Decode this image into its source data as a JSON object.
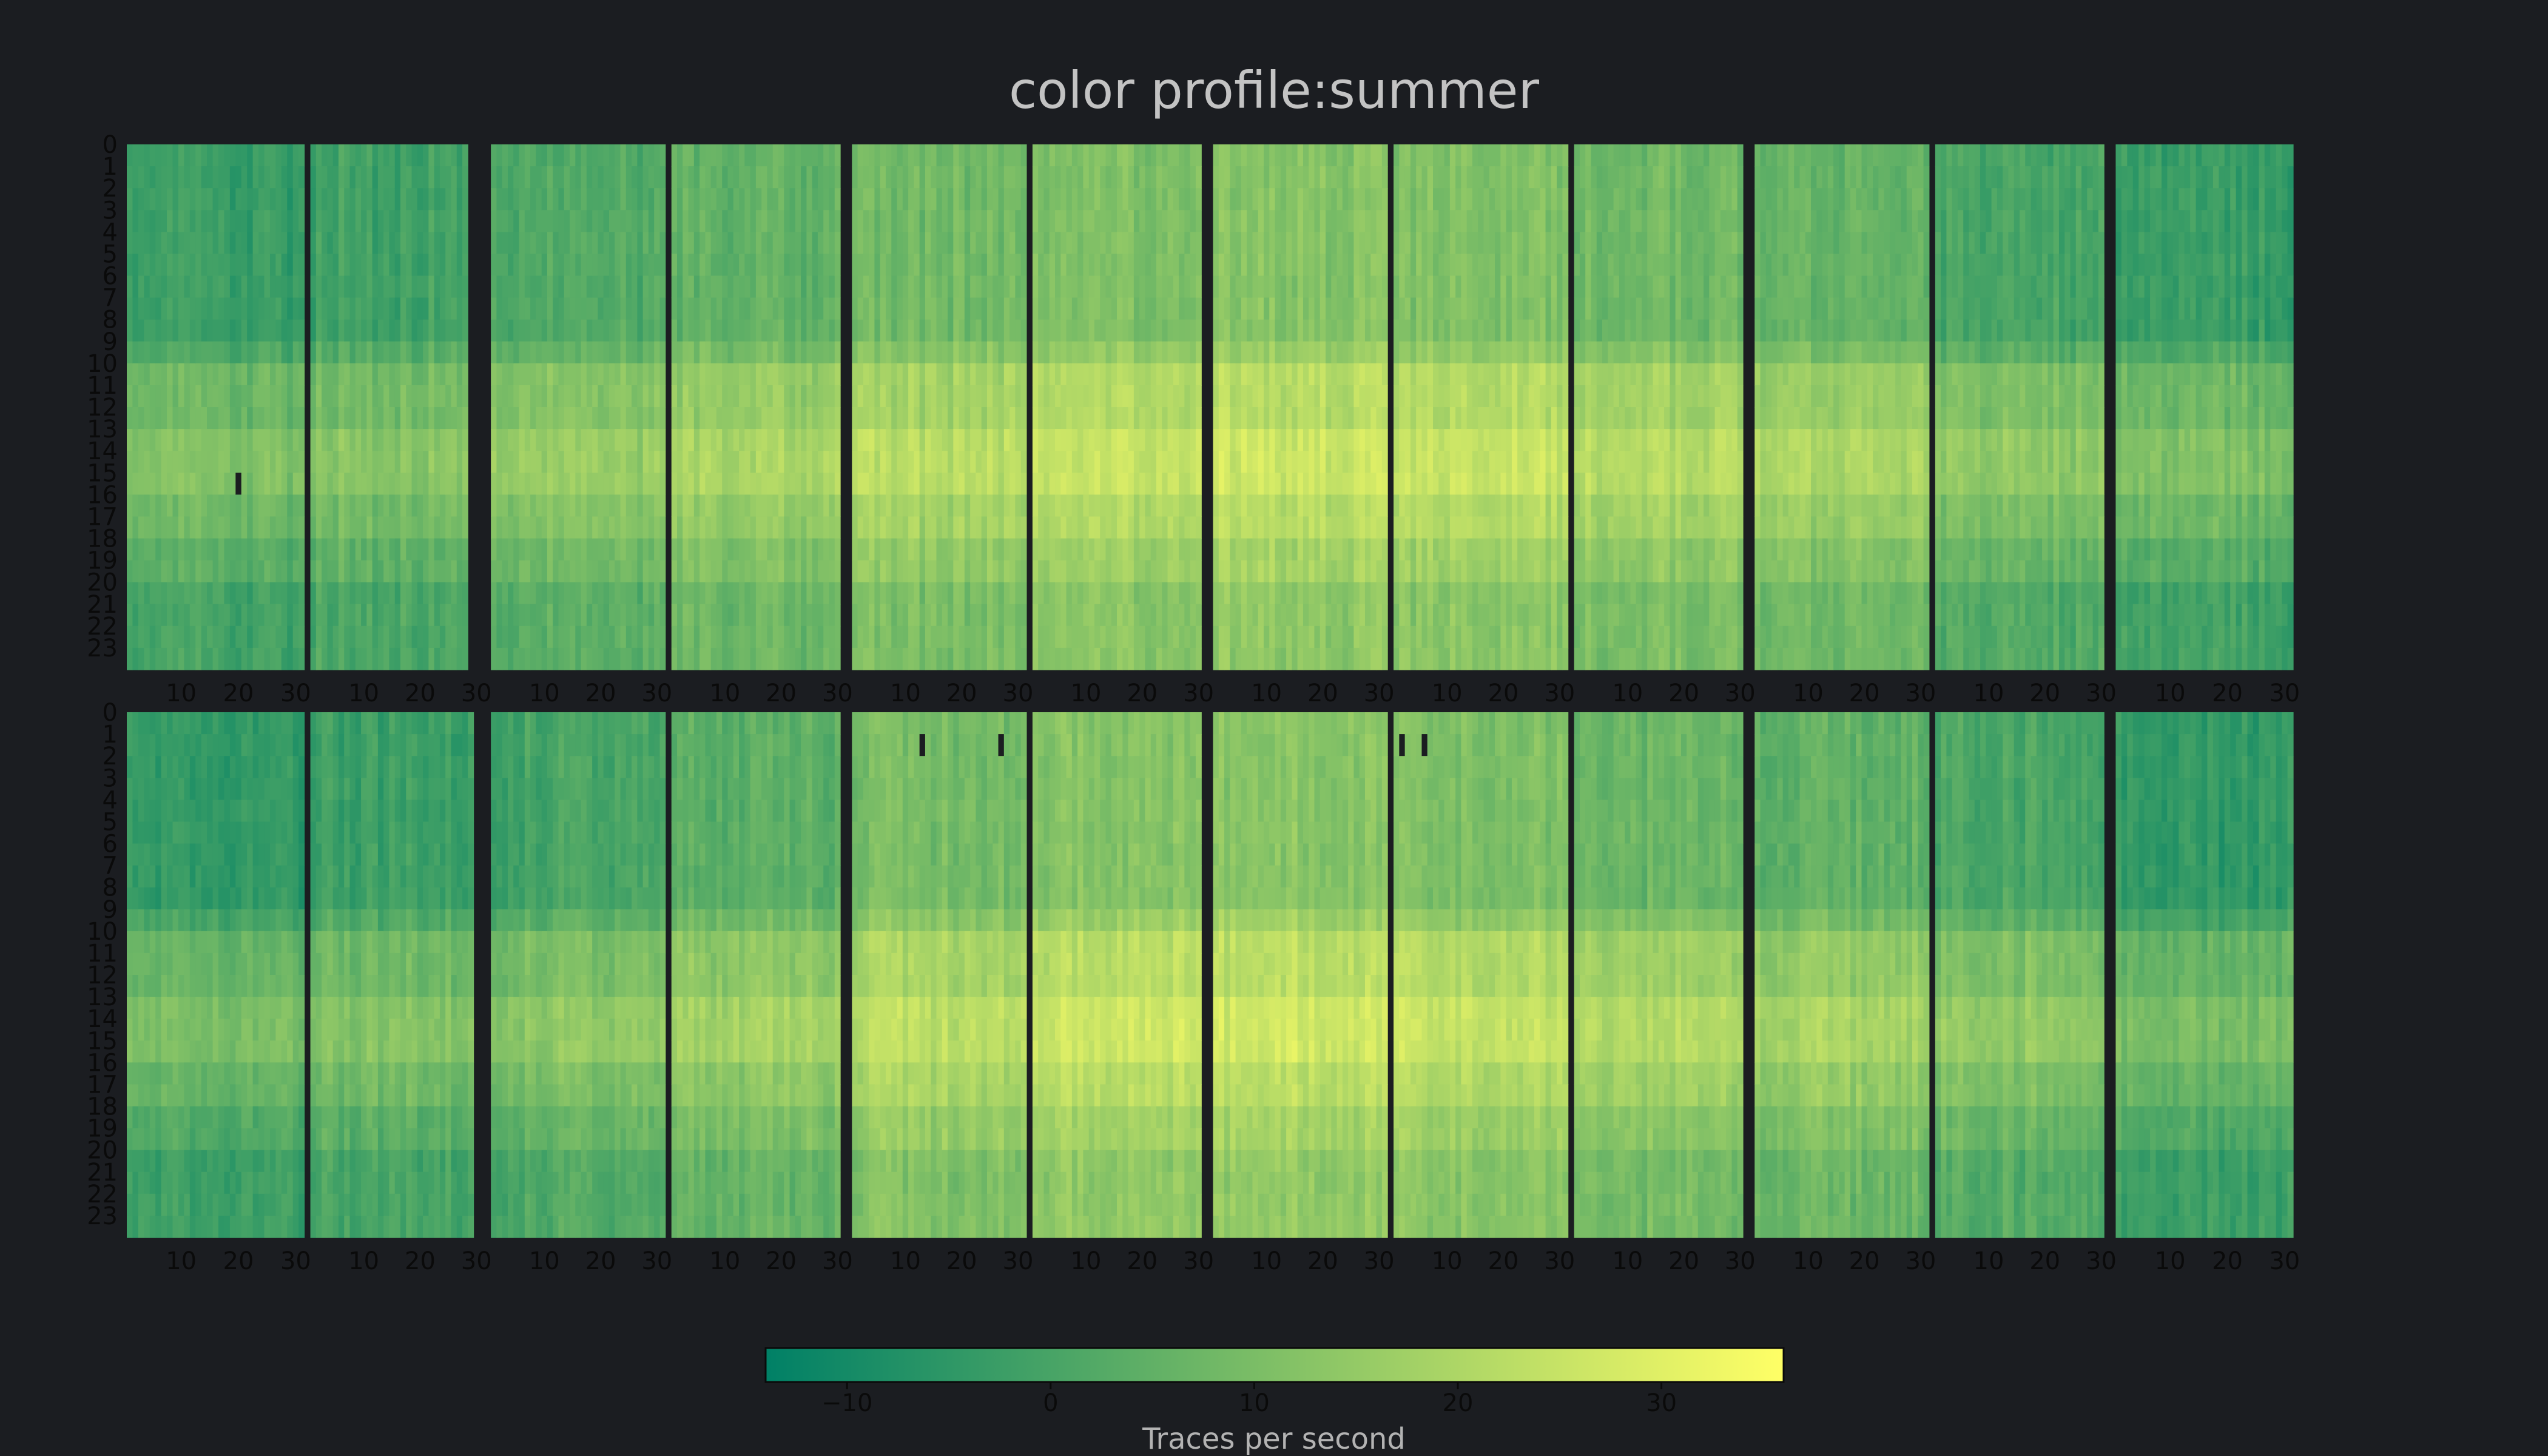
{
  "chart_data": {
    "type": "heatmap",
    "title": "color profile:summer",
    "colormap": "summer",
    "background_color": "#1b1d21",
    "separator_color": "#1b1d21",
    "title_color": "#c3c3c3",
    "tick_color": "#0a0a0a",
    "colorbar": {
      "label": "Traces per second",
      "range": [
        -14,
        36
      ],
      "ticks": [
        -10,
        0,
        10,
        20,
        30
      ],
      "tick_labels": [
        "−10",
        "0",
        "10",
        "20",
        "30"
      ],
      "colors": [
        "#008066",
        "#ffff66"
      ]
    },
    "x": {
      "label": "",
      "range": [
        1,
        31
      ],
      "ticks": [
        10,
        20,
        30
      ]
    },
    "y": {
      "label": "",
      "range": [
        0,
        23
      ],
      "ticks": [
        0,
        1,
        2,
        3,
        4,
        5,
        6,
        7,
        8,
        9,
        10,
        11,
        12,
        13,
        14,
        15,
        16,
        17,
        18,
        19,
        20,
        21,
        22,
        23
      ]
    },
    "panels": [
      {
        "row": "top",
        "month_days": [
          31,
          28,
          31,
          30,
          31,
          30,
          31,
          31,
          30,
          31,
          30,
          31
        ],
        "month_level": [
          -3,
          -1,
          2,
          5,
          8,
          11,
          12,
          11,
          8,
          6,
          0,
          -3
        ],
        "missing": [
          {
            "month": 1,
            "day": 20,
            "hour": 15
          }
        ]
      },
      {
        "row": "bottom",
        "month_days": [
          31,
          29,
          31,
          30,
          31,
          30,
          31,
          31,
          30,
          31,
          30,
          31
        ],
        "month_level": [
          -4,
          -2,
          0,
          4,
          9,
          12,
          13,
          11,
          7,
          5,
          1,
          -4
        ],
        "missing": [
          {
            "month": 5,
            "day": 13,
            "hour": 1
          },
          {
            "month": 5,
            "day": 27,
            "hour": 1
          },
          {
            "month": 8,
            "day": 2,
            "hour": 1
          },
          {
            "month": 8,
            "day": 6,
            "hour": 1
          }
        ]
      }
    ]
  }
}
